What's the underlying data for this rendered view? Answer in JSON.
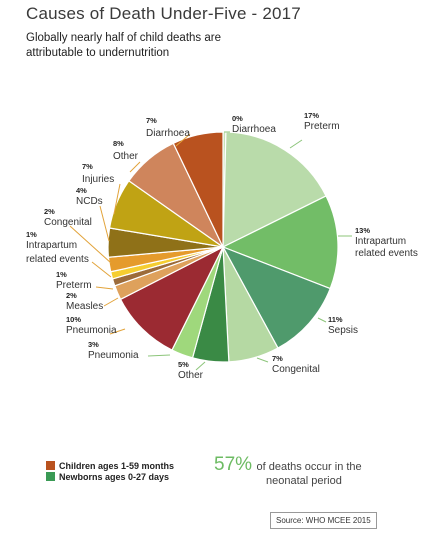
{
  "header": {
    "title": "Causes of Death Under-Five - 2017",
    "subtitle": "Globally nearly half of child deaths are attributable to undernutrition"
  },
  "chart_data": {
    "type": "pie",
    "title": "Causes of Death Under-Five - 2017",
    "start_angle_deg": 0,
    "direction": "clockwise",
    "slices": [
      {
        "label": "Diarrhoea",
        "pct": "0%",
        "value": 0.4,
        "group": "newborn",
        "color": "#c8e3b8"
      },
      {
        "label": "Preterm",
        "pct": "17%",
        "value": 17,
        "group": "newborn",
        "color": "#b9dbaa"
      },
      {
        "label": "Intrapartum related events",
        "pct": "13%",
        "value": 13,
        "group": "newborn",
        "color": "#72bd67"
      },
      {
        "label": "Sepsis",
        "pct": "11%",
        "value": 11,
        "group": "newborn",
        "color": "#4f9a6c"
      },
      {
        "label": "Congenital",
        "pct": "7%",
        "value": 7,
        "group": "newborn",
        "color": "#b5d9a3"
      },
      {
        "label": "Other",
        "pct": "5%",
        "value": 5,
        "group": "newborn",
        "color": "#3a8a45"
      },
      {
        "label": "Pneumonia",
        "pct": "3%",
        "value": 3,
        "group": "newborn",
        "color": "#9fd87c"
      },
      {
        "label": "Pneumonia",
        "pct": "10%",
        "value": 10,
        "group": "child",
        "color": "#9b2a32"
      },
      {
        "label": "Measles",
        "pct": "2%",
        "value": 2,
        "group": "child",
        "color": "#dea15c"
      },
      {
        "label": "Preterm",
        "pct": "1%",
        "value": 1,
        "group": "child",
        "color": "#9c6b3a"
      },
      {
        "label": "Intrapartum related events",
        "pct": "1%",
        "value": 1,
        "group": "child",
        "color": "#f5cd30"
      },
      {
        "label": "Congenital",
        "pct": "2%",
        "value": 2,
        "group": "child",
        "color": "#e59b2c"
      },
      {
        "label": "NCDs",
        "pct": "4%",
        "value": 4,
        "group": "child",
        "color": "#8f7118"
      },
      {
        "label": "Injuries",
        "pct": "7%",
        "value": 7,
        "group": "child",
        "color": "#c0a314"
      },
      {
        "label": "Other",
        "pct": "8%",
        "value": 8,
        "group": "child",
        "color": "#cf855c"
      },
      {
        "label": "Diarrhoea",
        "pct": "7%",
        "value": 7,
        "group": "child",
        "color": "#b9521f"
      }
    ],
    "slice_border_color": "#ffffff",
    "leader_line_color": "#e2a33a"
  },
  "legend": {
    "items": [
      {
        "label": "Children ages 1-59 months",
        "color": "#b9521f"
      },
      {
        "label": "Newborns ages 0-27 days",
        "color": "#3a9a55"
      }
    ]
  },
  "callout": {
    "value": "57%",
    "text_line1": "of deaths occur in the",
    "text_line2": "neonatal period"
  },
  "source": "Source: WHO MCEE 2015"
}
